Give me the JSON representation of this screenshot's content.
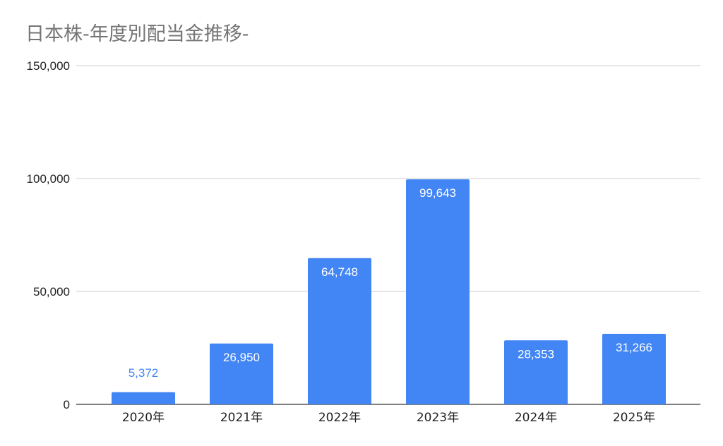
{
  "chart_data": {
    "type": "bar",
    "title": "日本株-年度別配当金推移-",
    "categories": [
      "2020年",
      "2021年",
      "2022年",
      "2023年",
      "2024年",
      "2025年"
    ],
    "values": [
      5372,
      26950,
      64748,
      99643,
      28353,
      31266
    ],
    "data_labels": [
      "5,372",
      "26,950",
      "64,748",
      "99,643",
      "28,353",
      "31,266"
    ],
    "yticks": [
      "0",
      "50,000",
      "100,000",
      "150,000"
    ],
    "ytick_values": [
      0,
      50000,
      100000,
      150000
    ],
    "ylim": [
      0,
      150000
    ],
    "xlabel": "",
    "ylabel": "",
    "grid": true,
    "legend": "none",
    "colors": {
      "bar": "#4285f4",
      "label_inside": "#ffffff",
      "label_outside": "#4285f4",
      "grid": "#cccccc",
      "axis": "#333333"
    }
  }
}
